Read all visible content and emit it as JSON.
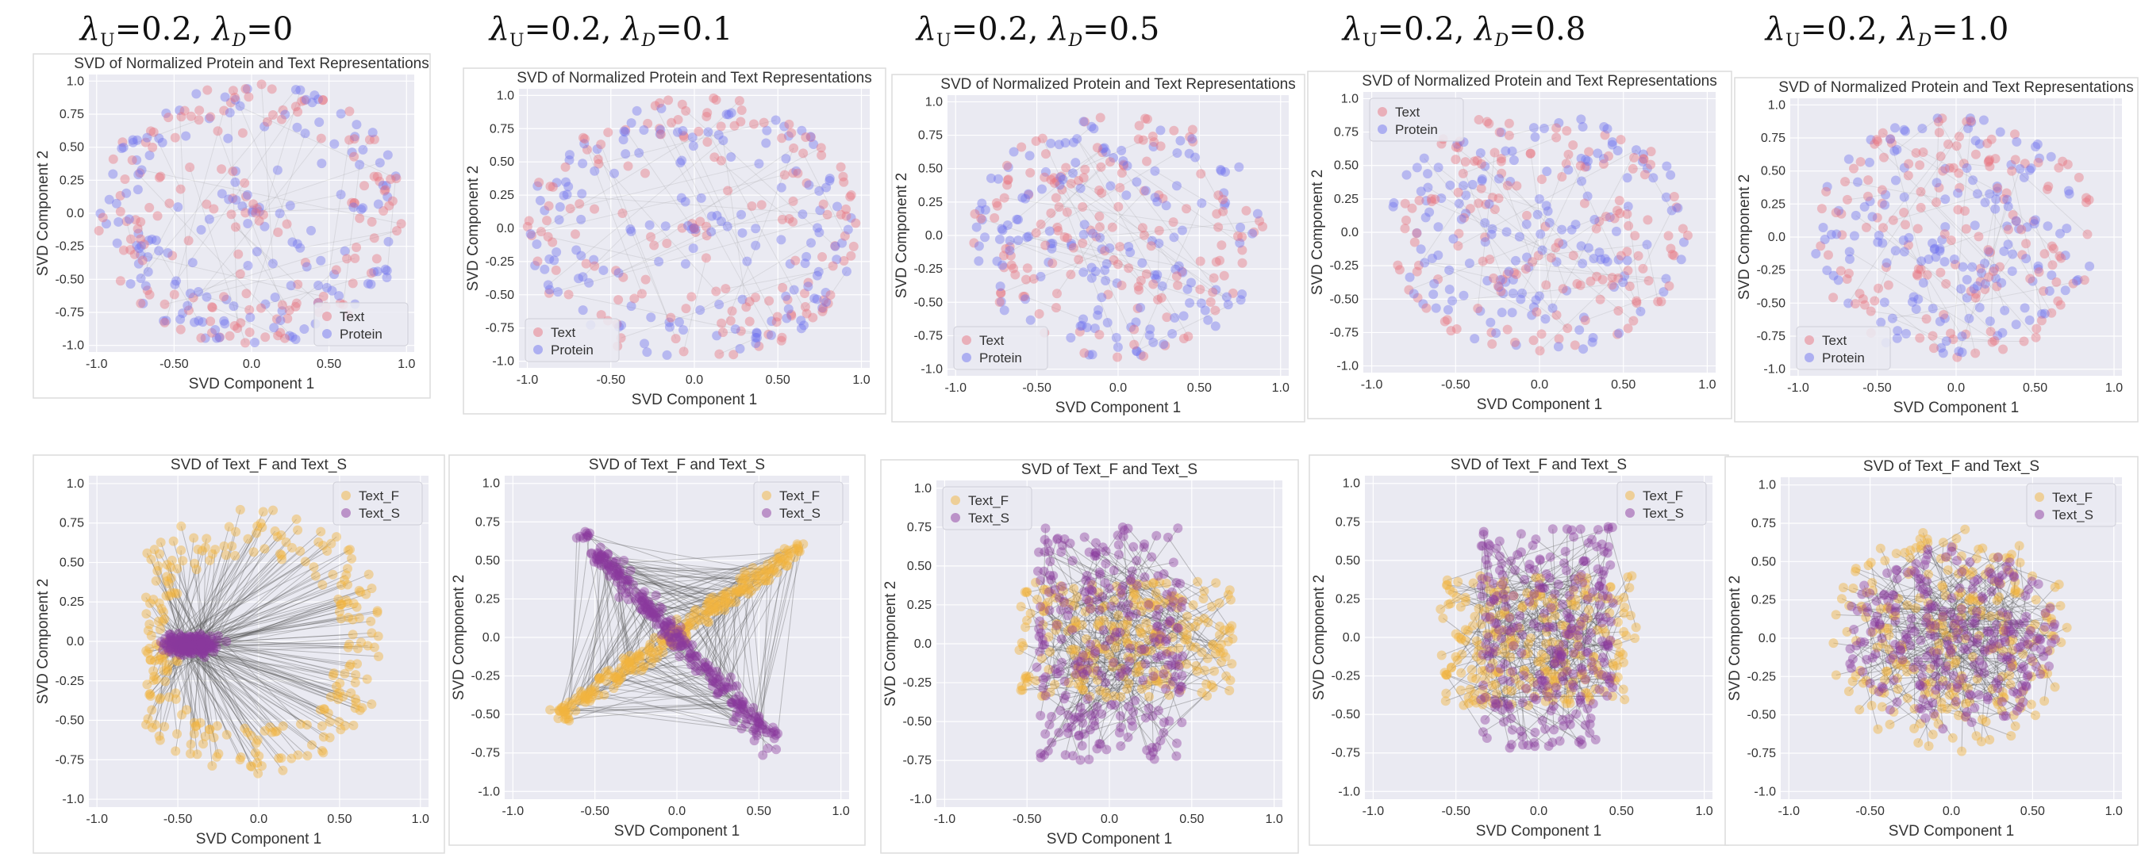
{
  "column_headers": [
    {
      "lu": "0.2",
      "ld": "0"
    },
    {
      "lu": "0.2",
      "ld": "0.1"
    },
    {
      "lu": "0.2",
      "ld": "0.5"
    },
    {
      "lu": "0.2",
      "ld": "0.8"
    },
    {
      "lu": "0.2",
      "ld": "1.0"
    }
  ],
  "header_symbols": {
    "lambda": "λ",
    "sub_u": "U",
    "sub_d": "D",
    "eq": "=",
    "sep": ","
  },
  "colors": {
    "text": "#e8737f",
    "protein": "#6f73ef",
    "text_f": "#f2b33d",
    "text_s": "#8b3a9e",
    "panel_bg": "#eaeaf2",
    "grid": "#ffffff",
    "connector": "#555555"
  },
  "chart_data": [
    {
      "type": "scatter",
      "row": 1,
      "col": 1,
      "shape": "ring",
      "title": "SVD of Normalized Protein and Text Representations",
      "xlabel": "SVD Component 1",
      "ylabel": "SVD Component 2",
      "xlim": [
        -1.05,
        1.05
      ],
      "ylim": [
        -1.05,
        1.05
      ],
      "xticks": [
        -1.0,
        -0.5,
        0.0,
        0.5,
        1.0
      ],
      "yticks": [
        -1.0,
        -0.75,
        -0.5,
        -0.25,
        0.0,
        0.25,
        0.5,
        0.75,
        1.0
      ],
      "legend": "bottom-right",
      "series": [
        {
          "name": "Text",
          "color": "#e8737f"
        },
        {
          "name": "Protein",
          "color": "#6f73ef"
        }
      ],
      "n_points": 320
    },
    {
      "type": "scatter",
      "row": 1,
      "col": 2,
      "shape": "ring",
      "title": "SVD of Normalized Protein and Text Representations",
      "xlabel": "SVD Component 1",
      "ylabel": "SVD Component 2",
      "xlim": [
        -1.05,
        1.05
      ],
      "ylim": [
        -1.05,
        1.05
      ],
      "xticks": [
        -1.0,
        -0.5,
        0.0,
        0.5,
        1.0
      ],
      "yticks": [
        -1.0,
        -0.75,
        -0.5,
        -0.25,
        0.0,
        0.25,
        0.5,
        0.75,
        1.0
      ],
      "legend": "bottom-left",
      "series": [
        {
          "name": "Text",
          "color": "#e8737f"
        },
        {
          "name": "Protein",
          "color": "#6f73ef"
        }
      ],
      "n_points": 320
    },
    {
      "type": "scatter",
      "row": 1,
      "col": 3,
      "shape": "disk",
      "title": "SVD of Normalized Protein and Text Representations",
      "xlabel": "SVD Component 1",
      "ylabel": "SVD Component 2",
      "xlim": [
        -1.05,
        1.05
      ],
      "ylim": [
        -1.05,
        1.05
      ],
      "xticks": [
        -1.0,
        -0.5,
        0.0,
        0.5,
        1.0
      ],
      "yticks": [
        -1.0,
        -0.75,
        -0.5,
        -0.25,
        0.0,
        0.25,
        0.5,
        0.75,
        1.0
      ],
      "legend": "bottom-left",
      "series": [
        {
          "name": "Text",
          "color": "#e8737f"
        },
        {
          "name": "Protein",
          "color": "#6f73ef"
        }
      ],
      "n_points": 320
    },
    {
      "type": "scatter",
      "row": 1,
      "col": 4,
      "shape": "disk",
      "title": "SVD of Normalized Protein and Text Representations",
      "xlabel": "SVD Component 1",
      "ylabel": "SVD Component 2",
      "xlim": [
        -1.05,
        1.05
      ],
      "ylim": [
        -1.05,
        1.05
      ],
      "xticks": [
        -1.0,
        -0.5,
        0.0,
        0.5,
        1.0
      ],
      "yticks": [
        -1.0,
        -0.75,
        -0.5,
        -0.25,
        0.0,
        0.25,
        0.5,
        0.75,
        1.0
      ],
      "legend": "top-left",
      "series": [
        {
          "name": "Text",
          "color": "#e8737f"
        },
        {
          "name": "Protein",
          "color": "#6f73ef"
        }
      ],
      "n_points": 320
    },
    {
      "type": "scatter",
      "row": 1,
      "col": 5,
      "shape": "disk",
      "title": "SVD of Normalized Protein and Text Representations",
      "xlabel": "SVD Component 1",
      "ylabel": "SVD Component 2",
      "xlim": [
        -1.05,
        1.05
      ],
      "ylim": [
        -1.05,
        1.05
      ],
      "xticks": [
        -1.0,
        -0.5,
        0.0,
        0.5,
        1.0
      ],
      "yticks": [
        -1.0,
        -0.75,
        -0.5,
        -0.25,
        0.0,
        0.25,
        0.5,
        0.75,
        1.0
      ],
      "legend": "bottom-left",
      "series": [
        {
          "name": "Text",
          "color": "#e8737f"
        },
        {
          "name": "Protein",
          "color": "#6f73ef"
        }
      ],
      "n_points": 320
    },
    {
      "type": "scatter",
      "row": 2,
      "col": 1,
      "shape": "hub",
      "title": "SVD of Text_F and Text_S",
      "xlabel": "SVD Component 1",
      "ylabel": "SVD Component 2",
      "xlim": [
        -1.05,
        1.05
      ],
      "ylim": [
        -1.05,
        1.05
      ],
      "xticks": [
        -1.0,
        -0.5,
        0.0,
        0.5,
        1.0
      ],
      "yticks": [
        -1.0,
        -0.75,
        -0.5,
        -0.25,
        0.0,
        0.25,
        0.5,
        0.75,
        1.0
      ],
      "legend": "top-right",
      "series": [
        {
          "name": "Text_F",
          "color": "#f2b33d"
        },
        {
          "name": "Text_S",
          "color": "#8b3a9e"
        }
      ],
      "n_points": 260
    },
    {
      "type": "scatter",
      "row": 2,
      "col": 2,
      "shape": "bowtie",
      "title": "SVD of Text_F and Text_S",
      "xlabel": "SVD Component 1",
      "ylabel": "SVD Component 2",
      "xlim": [
        -1.05,
        1.05
      ],
      "ylim": [
        -1.05,
        1.05
      ],
      "xticks": [
        -1.0,
        -0.5,
        0.0,
        0.5,
        1.0
      ],
      "yticks": [
        -1.0,
        -0.75,
        -0.5,
        -0.25,
        0.0,
        0.25,
        0.5,
        0.75,
        1.0
      ],
      "legend": "top-right",
      "series": [
        {
          "name": "Text_F",
          "color": "#f2b33d"
        },
        {
          "name": "Text_S",
          "color": "#8b3a9e"
        }
      ],
      "n_points": 260
    },
    {
      "type": "scatter",
      "row": 2,
      "col": 3,
      "shape": "band",
      "title": "SVD of Text_F and Text_S",
      "xlabel": "SVD Component 1",
      "ylabel": "SVD Component 2",
      "xlim": [
        -1.05,
        1.05
      ],
      "ylim": [
        -1.05,
        1.05
      ],
      "xticks": [
        -1.0,
        -0.5,
        0.0,
        0.5,
        1.0
      ],
      "yticks": [
        -1.0,
        -0.75,
        -0.5,
        -0.25,
        0.0,
        0.25,
        0.5,
        0.75,
        1.0
      ],
      "legend": "top-left",
      "series": [
        {
          "name": "Text_F",
          "color": "#f2b33d"
        },
        {
          "name": "Text_S",
          "color": "#8b3a9e"
        }
      ],
      "n_points": 260
    },
    {
      "type": "scatter",
      "row": 2,
      "col": 4,
      "shape": "cloud",
      "title": "SVD of Text_F and Text_S",
      "xlabel": "SVD Component 1",
      "ylabel": "SVD Component 2",
      "xlim": [
        -1.05,
        1.05
      ],
      "ylim": [
        -1.05,
        1.05
      ],
      "xticks": [
        -1.0,
        -0.5,
        0.0,
        0.5,
        1.0
      ],
      "yticks": [
        -1.0,
        -0.75,
        -0.5,
        -0.25,
        0.0,
        0.25,
        0.5,
        0.75,
        1.0
      ],
      "legend": "top-right",
      "series": [
        {
          "name": "Text_F",
          "color": "#f2b33d"
        },
        {
          "name": "Text_S",
          "color": "#8b3a9e"
        }
      ],
      "n_points": 260
    },
    {
      "type": "scatter",
      "row": 2,
      "col": 5,
      "shape": "mixed",
      "title": "SVD of Text_F and Text_S",
      "xlabel": "SVD Component 1",
      "ylabel": "SVD Component 2",
      "xlim": [
        -1.05,
        1.05
      ],
      "ylim": [
        -1.05,
        1.05
      ],
      "xticks": [
        -1.0,
        -0.5,
        0.0,
        0.5,
        1.0
      ],
      "yticks": [
        -1.0,
        -0.75,
        -0.5,
        -0.25,
        0.0,
        0.25,
        0.5,
        0.75,
        1.0
      ],
      "legend": "top-right",
      "series": [
        {
          "name": "Text_F",
          "color": "#f2b33d"
        },
        {
          "name": "Text_S",
          "color": "#8b3a9e"
        }
      ],
      "n_points": 260
    }
  ]
}
